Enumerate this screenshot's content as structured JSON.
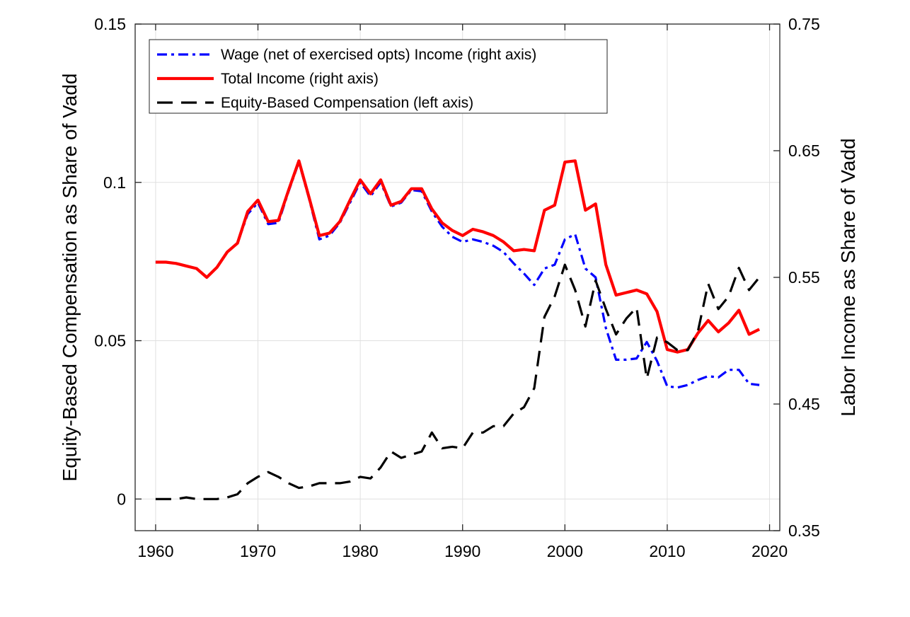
{
  "chart_data": {
    "type": "line",
    "ylabel_left": "Equity-Based Compensation as Share of Vadd",
    "ylabel_right": "Labor Income as Share of Vadd",
    "xlim": [
      1958,
      2021
    ],
    "ylim_left": [
      -0.01,
      0.15
    ],
    "ylim_right": [
      0.35,
      0.75
    ],
    "x_ticks": [
      1960,
      1970,
      1980,
      1990,
      2000,
      2010,
      2020
    ],
    "y_ticks_left": [
      0,
      0.05,
      0.1,
      0.15
    ],
    "y_tick_labels_left": [
      "0",
      "0.05",
      "0.1",
      "0.15"
    ],
    "y_ticks_right": [
      0.35,
      0.45,
      0.55,
      0.65,
      0.75
    ],
    "y_tick_labels_right": [
      "0.35",
      "0.45",
      "0.55",
      "0.65",
      "0.75"
    ],
    "grid": true,
    "legend_position": "top-left",
    "x": [
      1960,
      1961,
      1962,
      1963,
      1964,
      1965,
      1966,
      1967,
      1968,
      1969,
      1970,
      1971,
      1972,
      1973,
      1974,
      1975,
      1976,
      1977,
      1978,
      1979,
      1980,
      1981,
      1982,
      1983,
      1984,
      1985,
      1986,
      1987,
      1988,
      1989,
      1990,
      1991,
      1992,
      1993,
      1994,
      1995,
      1996,
      1997,
      1998,
      1999,
      2000,
      2001,
      2002,
      2003,
      2004,
      2005,
      2006,
      2007,
      2008,
      2009,
      2010,
      2011,
      2012,
      2013,
      2014,
      2015,
      2016,
      2017,
      2018,
      2019
    ],
    "series": [
      {
        "name": "Wage (net of exercised opts) Income (right axis)",
        "axis": "right",
        "color": "#0000ff",
        "style": "dashdot",
        "values": [
          0.562,
          0.562,
          0.561,
          0.559,
          0.557,
          0.55,
          0.558,
          0.57,
          0.577,
          0.6,
          0.609,
          0.592,
          0.593,
          0.618,
          0.641,
          0.612,
          0.58,
          0.583,
          0.593,
          0.609,
          0.625,
          0.614,
          0.625,
          0.606,
          0.609,
          0.619,
          0.618,
          0.602,
          0.59,
          0.582,
          0.578,
          0.58,
          0.578,
          0.575,
          0.57,
          0.561,
          0.553,
          0.544,
          0.557,
          0.56,
          0.58,
          0.584,
          0.557,
          0.55,
          0.51,
          0.485,
          0.485,
          0.486,
          0.499,
          0.484,
          0.464,
          0.463,
          0.465,
          0.469,
          0.472,
          0.471,
          0.477,
          0.477,
          0.466,
          0.465
        ]
      },
      {
        "name": "Total Income (right axis)",
        "axis": "right",
        "color": "#ff0000",
        "style": "solid",
        "values": [
          0.562,
          0.562,
          0.561,
          0.559,
          0.557,
          0.55,
          0.558,
          0.57,
          0.577,
          0.602,
          0.611,
          0.594,
          0.595,
          0.619,
          0.642,
          0.613,
          0.583,
          0.585,
          0.594,
          0.611,
          0.627,
          0.616,
          0.627,
          0.607,
          0.61,
          0.62,
          0.62,
          0.604,
          0.593,
          0.587,
          0.583,
          0.588,
          0.586,
          0.583,
          0.578,
          0.571,
          0.572,
          0.571,
          0.603,
          0.607,
          0.641,
          0.642,
          0.603,
          0.608,
          0.56,
          0.536,
          0.538,
          0.54,
          0.537,
          0.523,
          0.493,
          0.491,
          0.493,
          0.506,
          0.516,
          0.507,
          0.514,
          0.524,
          0.505,
          0.509
        ]
      },
      {
        "name": "Equity-Based Compensation (left axis)",
        "axis": "left",
        "color": "#000000",
        "style": "dashed",
        "values": [
          0.0,
          0.0,
          0.0,
          0.0005,
          0.0,
          0.0,
          0.0,
          0.0005,
          0.0015,
          0.005,
          0.007,
          0.0085,
          0.007,
          0.005,
          0.0035,
          0.004,
          0.005,
          0.005,
          0.005,
          0.0055,
          0.007,
          0.0065,
          0.01,
          0.015,
          0.013,
          0.014,
          0.015,
          0.021,
          0.016,
          0.0165,
          0.016,
          0.021,
          0.021,
          0.023,
          0.023,
          0.027,
          0.029,
          0.035,
          0.0575,
          0.064,
          0.074,
          0.066,
          0.0545,
          0.069,
          0.06,
          0.052,
          0.057,
          0.0605,
          0.038,
          0.051,
          0.0495,
          0.047,
          0.047,
          0.053,
          0.068,
          0.06,
          0.064,
          0.073,
          0.066,
          0.07
        ]
      }
    ]
  }
}
